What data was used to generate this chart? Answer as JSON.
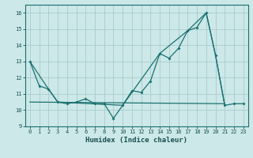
{
  "xlabel": "Humidex (Indice chaleur)",
  "background_color": "#cce8e8",
  "grid_color": "#aacccc",
  "line_color": "#1a7070",
  "xlim": [
    -0.5,
    23.5
  ],
  "ylim": [
    9.0,
    16.5
  ],
  "yticks": [
    9,
    10,
    11,
    12,
    13,
    14,
    15,
    16
  ],
  "xticks": [
    0,
    1,
    2,
    3,
    4,
    5,
    6,
    7,
    8,
    9,
    10,
    11,
    12,
    13,
    14,
    15,
    16,
    17,
    18,
    19,
    20,
    21,
    22,
    23
  ],
  "series1_x": [
    0,
    1,
    2,
    3,
    4,
    5,
    6,
    7,
    8,
    9,
    10,
    11,
    12,
    13,
    14,
    15,
    16,
    17,
    18,
    19,
    20,
    21,
    22,
    23
  ],
  "series1_y": [
    13.0,
    11.5,
    11.3,
    10.5,
    10.4,
    10.5,
    10.7,
    10.4,
    10.4,
    9.5,
    10.3,
    11.2,
    11.1,
    11.8,
    13.5,
    13.2,
    13.8,
    14.9,
    15.1,
    16.0,
    13.4,
    10.3,
    10.4,
    10.4
  ],
  "series2_x": [
    0,
    2,
    3,
    10,
    14,
    17,
    19,
    20,
    21
  ],
  "series2_y": [
    13.0,
    11.3,
    10.5,
    10.3,
    13.5,
    14.9,
    16.0,
    13.4,
    10.3
  ],
  "series3_x": [
    0,
    21
  ],
  "series3_y": [
    10.5,
    10.4
  ]
}
